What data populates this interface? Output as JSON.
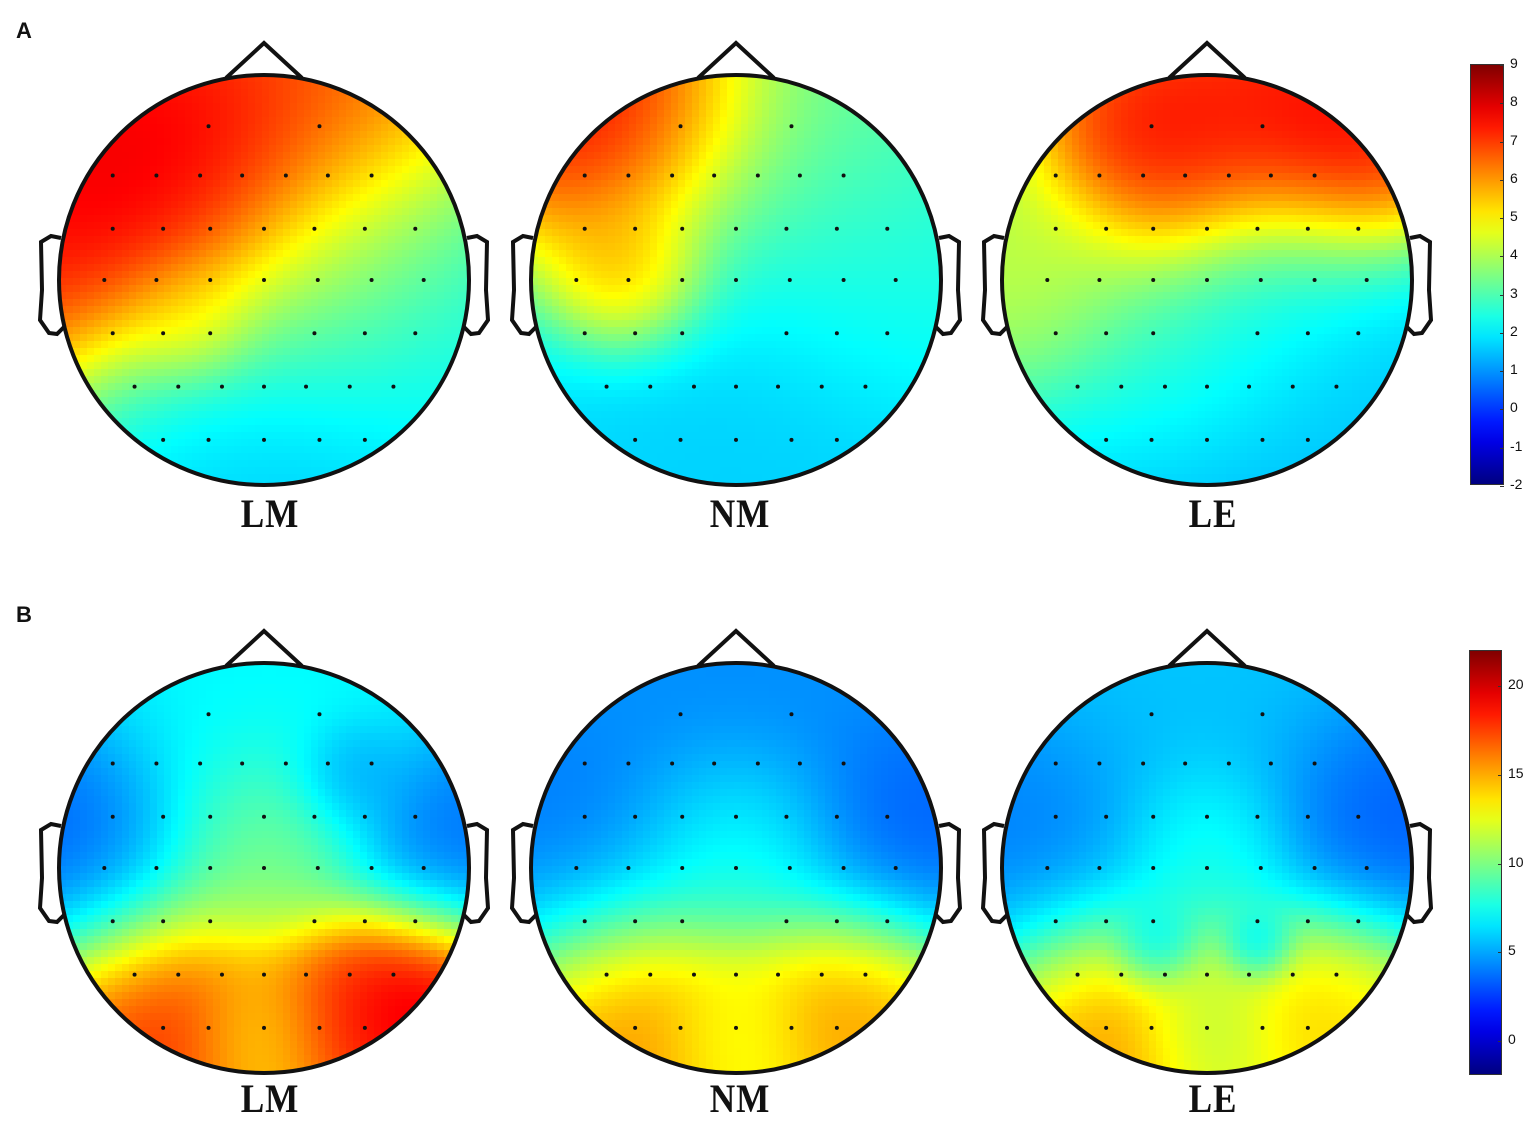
{
  "figure": {
    "panels": [
      {
        "id": "A",
        "letter": "A",
        "colorbar": {
          "min": -2,
          "max": 9,
          "ticks": [
            9,
            8,
            7,
            6,
            5,
            4,
            3,
            2,
            1,
            0,
            -1,
            -2
          ],
          "colormap": "jet"
        },
        "maps": [
          {
            "label": "LM"
          },
          {
            "label": "NM"
          },
          {
            "label": "LE"
          }
        ]
      },
      {
        "id": "B",
        "letter": "B",
        "colorbar": {
          "min": -2,
          "max": 22,
          "ticks": [
            20,
            15,
            10,
            5,
            0
          ],
          "colormap": "jet"
        },
        "maps": [
          {
            "label": "LM"
          },
          {
            "label": "NM"
          },
          {
            "label": "LE"
          }
        ]
      }
    ]
  },
  "chart_data": [
    {
      "type": "heatmap",
      "subtype": "scalp-topography",
      "panel": "A",
      "title": "",
      "maps": [
        "LM",
        "NM",
        "LE"
      ],
      "colorbar": {
        "range": [
          -2,
          9
        ],
        "ticks": [
          9,
          8,
          7,
          6,
          5,
          4,
          3,
          2,
          1,
          0,
          -1,
          -2
        ]
      },
      "description": {
        "LM": "High values (7-9) over left-frontal region, gradient through 4-5 centrally, low (1-2) over posterior/right-posterior",
        "NM": "Peak (8-9) left-frontal edge and a local maximum (~7) at left-temporal, mid-values 3-4 frontal-right, low (1.5-2) posterior",
        "LE": "High values (7-8.5) across frontal region (two maxima left-frontal and right-frontal), ~4-5 left-central, ~2-3 central-right, low (1-1.5) posterior"
      },
      "blobs": {
        "LM": [
          {
            "x": -0.75,
            "y": -0.35,
            "v": 8.5,
            "s": 0.55
          },
          {
            "x": -0.35,
            "y": -0.55,
            "v": 8.3,
            "s": 0.35
          },
          {
            "x": 0.1,
            "y": -0.75,
            "v": 7.2,
            "s": 0.5
          },
          {
            "x": -0.33,
            "y": 0.2,
            "v": 5.6,
            "s": 0.18
          },
          {
            "x": 0.3,
            "y": 0.0,
            "v": 4.2,
            "s": 0.4
          },
          {
            "x": 0.2,
            "y": 0.75,
            "v": 1.2,
            "s": 0.6
          },
          {
            "x": -0.3,
            "y": 0.85,
            "v": 1.8,
            "s": 0.4
          },
          {
            "x": 0.8,
            "y": 0.35,
            "v": 2.5,
            "s": 0.5
          }
        ],
        "NM": [
          {
            "x": -0.55,
            "y": -0.75,
            "v": 9.0,
            "s": 0.4
          },
          {
            "x": -0.5,
            "y": 0.0,
            "v": 7.3,
            "s": 0.22
          },
          {
            "x": 0.3,
            "y": -0.5,
            "v": 3.6,
            "s": 0.55
          },
          {
            "x": 0.3,
            "y": 0.45,
            "v": 1.4,
            "s": 0.7
          },
          {
            "x": -0.2,
            "y": 0.85,
            "v": 1.6,
            "s": 0.5
          },
          {
            "x": 0.85,
            "y": 0.0,
            "v": 2.5,
            "s": 0.4
          }
        ],
        "LE": [
          {
            "x": -0.2,
            "y": -0.55,
            "v": 8.6,
            "s": 0.3
          },
          {
            "x": 0.55,
            "y": -0.6,
            "v": 8.6,
            "s": 0.35
          },
          {
            "x": 0.1,
            "y": -0.8,
            "v": 7.5,
            "s": 0.4
          },
          {
            "x": -0.8,
            "y": 0.0,
            "v": 4.6,
            "s": 0.3
          },
          {
            "x": -0.1,
            "y": 0.2,
            "v": 3.6,
            "s": 0.45
          },
          {
            "x": 0.35,
            "y": 0.05,
            "v": 2.0,
            "s": 0.3
          },
          {
            "x": 0.15,
            "y": 0.75,
            "v": 1.0,
            "s": 0.6
          },
          {
            "x": 0.8,
            "y": 0.5,
            "v": 1.6,
            "s": 0.4
          }
        ]
      },
      "baseline": 2.8
    },
    {
      "type": "heatmap",
      "subtype": "scalp-topography",
      "panel": "B",
      "title": "",
      "maps": [
        "LM",
        "NM",
        "LE"
      ],
      "colorbar": {
        "range": [
          -2,
          22
        ],
        "ticks": [
          20,
          15,
          10,
          5,
          0
        ]
      },
      "description": {
        "LM": "Occipital-parietal maxima (~18-22) bilateral posterior, central value ~10-12, low (~3-5) bilateral temporal, ~6 frontal",
        "NM": "Posterior maxima (~16-18) bilateral, central ~8-9, low (~3-4) temporal/frontal",
        "LE": "Posterior maxima (~15-17), central ~8, low (~3-4) temporal/frontal"
      },
      "blobs": {
        "LM": [
          {
            "x": -0.5,
            "y": 0.72,
            "v": 19.5,
            "s": 0.38
          },
          {
            "x": 0.68,
            "y": 0.65,
            "v": 22.0,
            "s": 0.3
          },
          {
            "x": 0.38,
            "y": 0.72,
            "v": 18.0,
            "s": 0.25
          },
          {
            "x": 0.0,
            "y": 0.8,
            "v": 13.0,
            "s": 0.2
          },
          {
            "x": 0.0,
            "y": -0.1,
            "v": 11.0,
            "s": 0.3
          },
          {
            "x": -0.85,
            "y": -0.05,
            "v": 2.5,
            "s": 0.35
          },
          {
            "x": 0.85,
            "y": -0.1,
            "v": 3.0,
            "s": 0.3
          },
          {
            "x": 0.4,
            "y": -0.45,
            "v": 4.0,
            "s": 0.15
          },
          {
            "x": 0.0,
            "y": -0.7,
            "v": 7.0,
            "s": 0.5
          }
        ],
        "NM": [
          {
            "x": -0.5,
            "y": 0.72,
            "v": 17.0,
            "s": 0.38
          },
          {
            "x": 0.55,
            "y": 0.68,
            "v": 16.5,
            "s": 0.33
          },
          {
            "x": 0.0,
            "y": 0.8,
            "v": 12.0,
            "s": 0.2
          },
          {
            "x": 0.0,
            "y": -0.1,
            "v": 8.5,
            "s": 0.3
          },
          {
            "x": -0.8,
            "y": -0.1,
            "v": 3.5,
            "s": 0.4
          },
          {
            "x": 0.8,
            "y": -0.15,
            "v": 2.8,
            "s": 0.35
          },
          {
            "x": 0.0,
            "y": -0.75,
            "v": 4.0,
            "s": 0.5
          }
        ],
        "LE": [
          {
            "x": -0.5,
            "y": 0.72,
            "v": 17.0,
            "s": 0.35
          },
          {
            "x": 0.55,
            "y": 0.68,
            "v": 15.0,
            "s": 0.33
          },
          {
            "x": 0.0,
            "y": 0.75,
            "v": 10.5,
            "s": 0.2
          },
          {
            "x": 0.0,
            "y": -0.1,
            "v": 8.5,
            "s": 0.25
          },
          {
            "x": -0.8,
            "y": -0.05,
            "v": 3.5,
            "s": 0.4
          },
          {
            "x": 0.8,
            "y": -0.2,
            "v": 2.6,
            "s": 0.35
          },
          {
            "x": -0.25,
            "y": 0.38,
            "v": 4.5,
            "s": 0.12
          },
          {
            "x": 0.25,
            "y": 0.38,
            "v": 4.5,
            "s": 0.1
          },
          {
            "x": 0.0,
            "y": -0.75,
            "v": 5.5,
            "s": 0.5
          }
        ]
      },
      "baseline": 6.5
    }
  ]
}
